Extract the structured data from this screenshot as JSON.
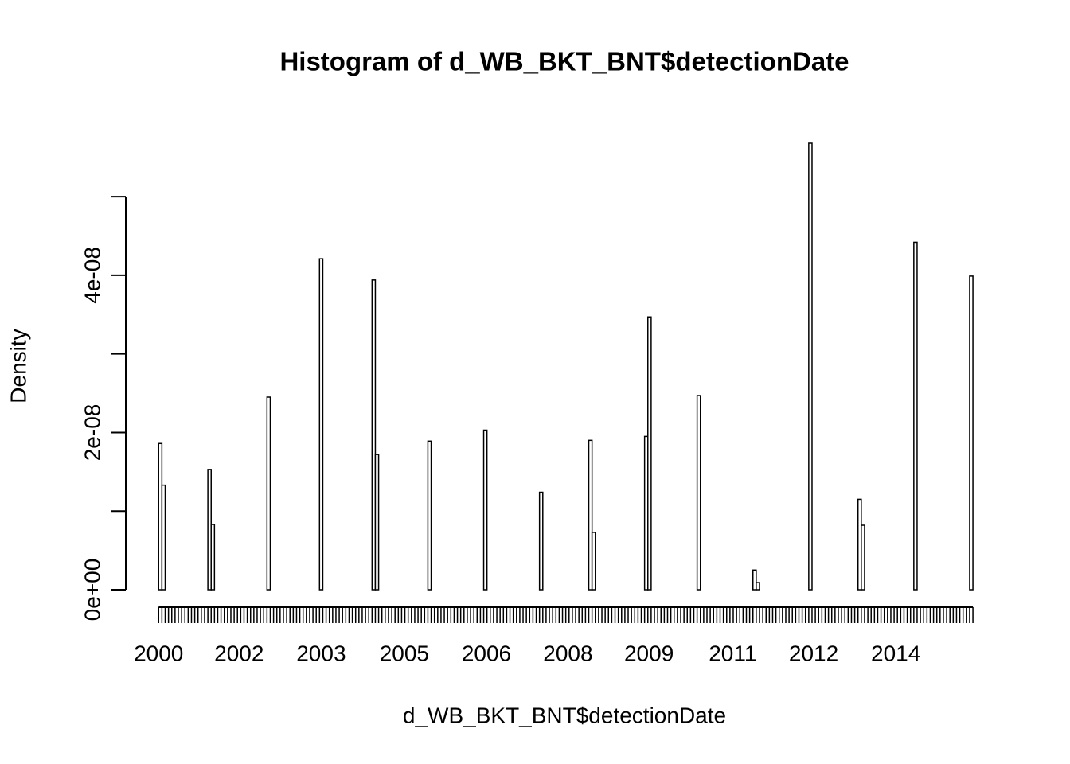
{
  "chart_data": {
    "type": "histogram",
    "title": "Histogram of d_WB_BKT_BNT$detectionDate",
    "xlabel": "d_WB_BKT_BNT$detectionDate",
    "ylabel": "Density",
    "color": "#ffffff",
    "edgecolor": "#000000",
    "xlim": [
      1999.4,
      2015.49
    ],
    "ylim": [
      0,
      5.7e-08
    ],
    "xticks": [
      {
        "value": 2000,
        "label": "2000"
      },
      {
        "value": 2001.47,
        "label": "2002"
      },
      {
        "value": 2002.97,
        "label": "2003"
      },
      {
        "value": 2004.49,
        "label": "2005"
      },
      {
        "value": 2005.99,
        "label": "2006"
      },
      {
        "value": 2007.48,
        "label": "2008"
      },
      {
        "value": 2008.96,
        "label": "2009"
      },
      {
        "value": 2010.49,
        "label": "2011"
      },
      {
        "value": 2011.97,
        "label": "2012"
      },
      {
        "value": 2013.47,
        "label": "2014"
      }
    ],
    "yticks": [
      {
        "value": 0,
        "label": "0e+00"
      },
      1e-08,
      {
        "value": 2e-08,
        "label": "2e-08"
      },
      3e-08,
      {
        "value": 4e-08,
        "label": "4e-08"
      },
      5e-08
    ],
    "bins": [
      2000,
      2000.06,
      2000.12,
      2000.18,
      2000.24,
      2000.3,
      2000.36,
      2000.42,
      2000.48,
      2000.54,
      2000.6,
      2000.66,
      2000.72,
      2000.78,
      2000.84,
      2000.9,
      2000.96,
      2001.02,
      2001.08,
      2001.14,
      2001.2,
      2001.26,
      2001.32,
      2001.38,
      2001.44,
      2001.5,
      2001.56,
      2001.62,
      2001.68,
      2001.74,
      2001.8,
      2001.86,
      2001.92,
      2001.98,
      2002.04,
      2002.1,
      2002.16,
      2002.22,
      2002.28,
      2002.34,
      2002.4,
      2002.46,
      2002.52,
      2002.58,
      2002.64,
      2002.7,
      2002.76,
      2002.82,
      2002.88,
      2002.94,
      2003,
      2003.06,
      2003.12,
      2003.18,
      2003.24,
      2003.3,
      2003.36,
      2003.42,
      2003.48,
      2003.54,
      2003.6,
      2003.66,
      2003.72,
      2003.78,
      2003.84,
      2003.9,
      2003.96,
      2004.02,
      2004.08,
      2004.14,
      2004.2,
      2004.26,
      2004.32,
      2004.38,
      2004.44,
      2004.5,
      2004.56,
      2004.62,
      2004.68,
      2004.74,
      2004.8,
      2004.86,
      2004.92,
      2004.98,
      2005.04,
      2005.1,
      2005.16,
      2005.22,
      2005.28,
      2005.34,
      2005.4,
      2005.46,
      2005.52,
      2005.58,
      2005.64,
      2005.7,
      2005.76,
      2005.82,
      2005.88,
      2005.94,
      2006,
      2006.06,
      2006.12,
      2006.18,
      2006.24,
      2006.3,
      2006.36,
      2006.42,
      2006.48,
      2006.54,
      2006.6,
      2006.66,
      2006.72,
      2006.78,
      2006.84,
      2006.9,
      2006.96,
      2007.02,
      2007.08,
      2007.14,
      2007.2,
      2007.26,
      2007.32,
      2007.38,
      2007.44,
      2007.5,
      2007.56,
      2007.62,
      2007.68,
      2007.74,
      2007.8,
      2007.86,
      2007.92,
      2007.98,
      2008.04,
      2008.1,
      2008.16,
      2008.22,
      2008.28,
      2008.34,
      2008.4,
      2008.46,
      2008.52,
      2008.58,
      2008.64,
      2008.7,
      2008.76,
      2008.82,
      2008.88,
      2008.94,
      2009,
      2009.06,
      2009.12,
      2009.18,
      2009.24,
      2009.3,
      2009.36,
      2009.42,
      2009.48,
      2009.54,
      2009.6,
      2009.66,
      2009.72,
      2009.78,
      2009.84,
      2009.9,
      2009.96,
      2010.02,
      2010.08,
      2010.14,
      2010.2,
      2010.26,
      2010.32,
      2010.38,
      2010.44,
      2010.5,
      2010.56,
      2010.62,
      2010.68,
      2010.74,
      2010.8,
      2010.86,
      2010.92,
      2010.98,
      2011.04,
      2011.1,
      2011.16,
      2011.22,
      2011.28,
      2011.34,
      2011.4,
      2011.46,
      2011.52,
      2011.58,
      2011.64,
      2011.7,
      2011.76,
      2011.82,
      2011.88,
      2011.94,
      2012,
      2012.06,
      2012.12,
      2012.18,
      2012.24,
      2012.3,
      2012.36,
      2012.42,
      2012.48,
      2012.54,
      2012.6,
      2012.66,
      2012.72,
      2012.78,
      2012.84,
      2012.9,
      2012.96,
      2013.02,
      2013.08,
      2013.14,
      2013.2,
      2013.26,
      2013.32,
      2013.38,
      2013.44,
      2013.5,
      2013.56,
      2013.62,
      2013.68,
      2013.74,
      2013.8,
      2013.86,
      2013.92,
      2013.98,
      2014.04,
      2014.1,
      2014.16,
      2014.22,
      2014.28,
      2014.34,
      2014.4,
      2014.46,
      2014.52,
      2014.58,
      2014.64,
      2014.7,
      2014.76,
      2014.82,
      2014.88
    ],
    "values": [
      1.86e-08,
      1.33e-08,
      0,
      0,
      0,
      0,
      0,
      0,
      0,
      0,
      0,
      0,
      0,
      0,
      0,
      1.53e-08,
      8.3e-09,
      0,
      0,
      0,
      0,
      0,
      0,
      0,
      0,
      0,
      0,
      0,
      0,
      0,
      0,
      0,
      0,
      2.45e-08,
      0,
      0,
      0,
      0,
      0,
      0,
      0,
      0,
      0,
      0,
      0,
      0,
      0,
      0,
      0,
      4.21e-08,
      0,
      0,
      0,
      0,
      0,
      0,
      0,
      0,
      0,
      0,
      0,
      0,
      0,
      0,
      0,
      3.94e-08,
      1.72e-08,
      0,
      0,
      0,
      0,
      0,
      0,
      0,
      0,
      0,
      0,
      0,
      0,
      0,
      0,
      0,
      1.89e-08,
      0,
      0,
      0,
      0,
      0,
      0,
      0,
      0,
      0,
      0,
      0,
      0,
      0,
      0,
      0,
      0,
      2.03e-08,
      0,
      0,
      0,
      0,
      0,
      0,
      0,
      0,
      0,
      0,
      0,
      0,
      0,
      0,
      0,
      0,
      1.24e-08,
      0,
      0,
      0,
      0,
      0,
      0,
      0,
      0,
      0,
      0,
      0,
      0,
      0,
      0,
      1.9e-08,
      7.3e-09,
      0,
      0,
      0,
      0,
      0,
      0,
      0,
      0,
      0,
      0,
      0,
      0,
      0,
      0,
      0,
      1.95e-08,
      3.47e-08,
      0,
      0,
      0,
      0,
      0,
      0,
      0,
      0,
      0,
      0,
      0,
      0,
      0,
      0,
      2.47e-08,
      0,
      0,
      0,
      0,
      0,
      0,
      0,
      0,
      0,
      0,
      0,
      0,
      0,
      0,
      0,
      0,
      2.5e-09,
      9e-10,
      0,
      0,
      0,
      0,
      0,
      0,
      0,
      0,
      0,
      0,
      0,
      0,
      0,
      0,
      0,
      5.68e-08,
      0,
      0,
      0,
      0,
      0,
      0,
      0,
      0,
      0,
      0,
      0,
      0,
      0,
      0,
      1.15e-08,
      8.2e-09,
      0,
      0,
      0,
      0,
      0,
      0,
      0,
      0,
      0,
      0,
      0,
      0,
      0,
      0,
      0,
      4.42e-08,
      0,
      0,
      0,
      0,
      0,
      0,
      0,
      0,
      0,
      0,
      0,
      0,
      0,
      0,
      0,
      0,
      3.99e-08
    ]
  }
}
